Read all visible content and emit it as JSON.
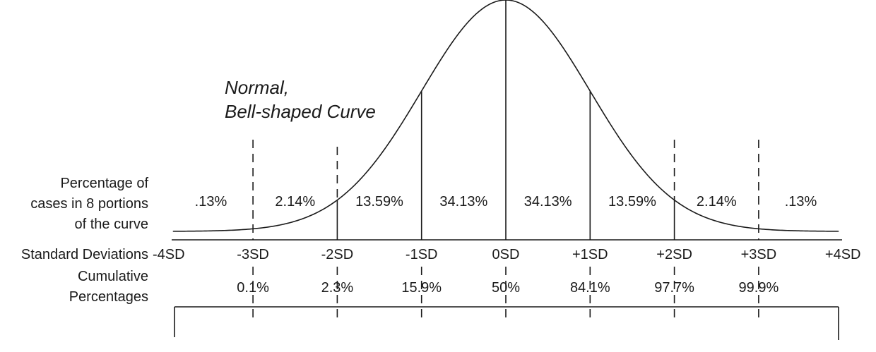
{
  "title_lines": [
    "Normal,",
    "Bell-shaped Curve"
  ],
  "row_labels": {
    "percentage": [
      "Percentage of",
      "cases in 8 portions",
      "of the curve"
    ],
    "standard_deviations": "Standard Deviations",
    "cumulative": [
      "Cumulative",
      "Percentages"
    ]
  },
  "chart_data": {
    "type": "area",
    "x": [
      -4,
      -3,
      -2,
      -1,
      0,
      1,
      2,
      3,
      4
    ],
    "sd_labels": [
      "-4SD",
      "-3SD",
      "-2SD",
      "-1SD",
      "0SD",
      "+1SD",
      "+2SD",
      "+3SD",
      "+4SD"
    ],
    "portion_percentages": [
      ".13%",
      "2.14%",
      "13.59%",
      "34.13%",
      "34.13%",
      "13.59%",
      "2.14%",
      ".13%"
    ],
    "cumulative_percentages": [
      {
        "x": -3,
        "label": "0.1%"
      },
      {
        "x": -2,
        "label": "2.3%"
      },
      {
        "x": -1,
        "label": "15.9%"
      },
      {
        "x": 0,
        "label": "50%"
      },
      {
        "x": 1,
        "label": "84.1%"
      },
      {
        "x": 2,
        "label": "97.7%"
      },
      {
        "x": 3,
        "label": "99.9%"
      }
    ],
    "solid_lines_at": [
      -2,
      -1,
      0,
      1,
      2
    ],
    "dashed_lines_at": [
      -3,
      3
    ],
    "xlim": [
      -4,
      4
    ]
  }
}
